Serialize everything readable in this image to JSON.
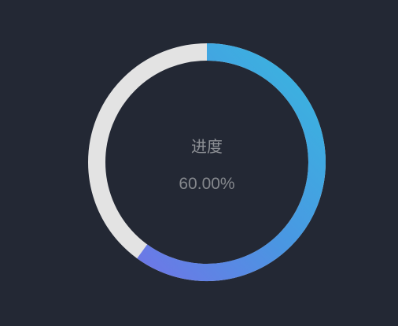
{
  "gauge": {
    "title": "进度",
    "value_text": "60.00%",
    "progress": 0.6,
    "track_color": "#e3e3e3",
    "gradient_start": "#3ab2e0",
    "gradient_end": "#6b78e6",
    "background": "#232834"
  }
}
